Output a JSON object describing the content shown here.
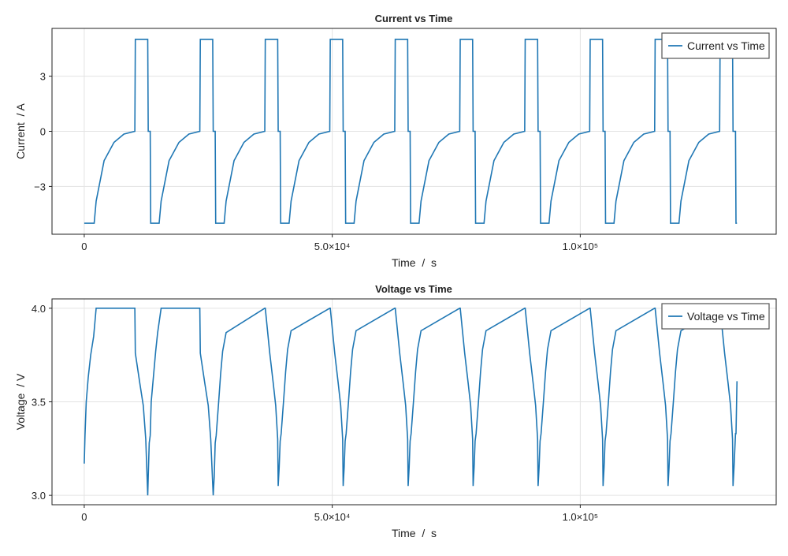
{
  "chart_data": [
    {
      "type": "line",
      "title": "Current vs Time",
      "xlabel": "Time  /  s",
      "ylabel": "Current  / A",
      "xlim": [
        -6500,
        139500
      ],
      "ylim": [
        -5.6,
        5.6
      ],
      "xticks": [
        0,
        50000,
        100000
      ],
      "xtick_labels": [
        "0",
        "5.0×10⁴",
        "1.0×10⁵"
      ],
      "yticks": [
        -3,
        0,
        3
      ],
      "ytick_labels": [
        "−3",
        "0",
        "3"
      ],
      "grid": true,
      "legend": "top-right",
      "color": "#1f77b4",
      "series": [
        {
          "name": "Current vs Time",
          "x": [
            0,
            2000,
            2400,
            4000,
            6000,
            8000,
            10200,
            10300,
            12800,
            12900,
            13300,
            13400,
            15100,
            15500,
            17100,
            19100,
            21100,
            23300,
            23400,
            25900,
            26000,
            26400,
            26500,
            28200,
            28600,
            30200,
            32200,
            34200,
            36400,
            36500,
            39000,
            39100,
            39500,
            39600,
            41300,
            41700,
            43300,
            45300,
            47300,
            49500,
            49600,
            52100,
            52200,
            52600,
            52700,
            54400,
            54800,
            56400,
            58400,
            60400,
            62600,
            62700,
            65200,
            65300,
            65700,
            65800,
            67500,
            67900,
            69500,
            71500,
            73500,
            75700,
            75800,
            78300,
            78400,
            78800,
            78900,
            80600,
            81000,
            82600,
            84600,
            86600,
            88800,
            88900,
            91400,
            91500,
            91900,
            92000,
            93700,
            94100,
            95700,
            97700,
            99700,
            101900,
            102000,
            104500,
            104600,
            105000,
            105100,
            106800,
            107200,
            108800,
            110800,
            112800,
            115000,
            115100,
            117600,
            117700,
            118100,
            118200,
            119900,
            120300,
            121900,
            123900,
            125900,
            128100,
            128200,
            130700,
            130800,
            131300,
            131400,
            131600
          ],
          "values": [
            -5,
            -5,
            -3.8,
            -1.6,
            -0.6,
            -0.15,
            0,
            5,
            5,
            0,
            0,
            -5,
            -5,
            -3.8,
            -1.6,
            -0.6,
            -0.15,
            0,
            5,
            5,
            0,
            0,
            -5,
            -5,
            -3.8,
            -1.6,
            -0.6,
            -0.15,
            0,
            5,
            5,
            0,
            0,
            -5,
            -5,
            -3.8,
            -1.6,
            -0.6,
            -0.15,
            0,
            5,
            5,
            0,
            0,
            -5,
            -5,
            -3.8,
            -1.6,
            -0.6,
            -0.15,
            0,
            5,
            5,
            0,
            0,
            -5,
            -5,
            -3.8,
            -1.6,
            -0.6,
            -0.15,
            0,
            5,
            5,
            0,
            0,
            -5,
            -5,
            -3.8,
            -1.6,
            -0.6,
            -0.15,
            0,
            5,
            5,
            0,
            0,
            -5,
            -5,
            -3.8,
            -1.6,
            -0.6,
            -0.15,
            0,
            5,
            5,
            0,
            0,
            -5,
            -5,
            -3.8,
            -1.6,
            -0.6,
            -0.15,
            0,
            5,
            5,
            0,
            0,
            -5,
            -5,
            -3.8,
            -1.6,
            -0.6,
            -0.15,
            0,
            5,
            5,
            0,
            0,
            -5,
            -5
          ]
        }
      ]
    },
    {
      "type": "line",
      "title": "Voltage vs Time",
      "xlabel": "Time  /  s",
      "ylabel": "Voltage  / V",
      "xlim": [
        -6500,
        139500
      ],
      "ylim": [
        2.95,
        4.05
      ],
      "xticks": [
        0,
        50000,
        100000
      ],
      "xtick_labels": [
        "0",
        "5.0×10⁴",
        "1.0×10⁵"
      ],
      "yticks": [
        3.0,
        3.5,
        4.0
      ],
      "ytick_labels": [
        "3.0",
        "3.5",
        "4.0"
      ],
      "grid": true,
      "legend": "top-right",
      "color": "#1f77b4",
      "series": [
        {
          "name": "Voltage vs Time",
          "x": [
            0,
            150,
            400,
            800,
            1300,
            1900,
            2400,
            10200,
            10300,
            11200,
            11900,
            12400,
            12800,
            12900,
            13100,
            13300,
            13500,
            14000,
            14400,
            14800,
            15500,
            23300,
            23400,
            24300,
            25000,
            25500,
            26000,
            26200,
            26400,
            26600,
            27100,
            27500,
            27900,
            28600,
            36400,
            36500,
            37400,
            38100,
            38600,
            39000,
            39100,
            39300,
            39500,
            39700,
            40200,
            40600,
            41000,
            41700,
            49500,
            49600,
            50500,
            51200,
            51700,
            52100,
            52200,
            52400,
            52600,
            52800,
            53300,
            53700,
            54100,
            54800,
            62600,
            62700,
            63600,
            64300,
            64800,
            65200,
            65300,
            65500,
            65700,
            65900,
            66400,
            66800,
            67200,
            67900,
            75700,
            75800,
            76700,
            77400,
            77900,
            78300,
            78400,
            78600,
            78800,
            79000,
            79500,
            79900,
            80300,
            81000,
            88800,
            88900,
            89800,
            90500,
            91000,
            91400,
            91500,
            91700,
            91900,
            92100,
            92600,
            93000,
            93400,
            94100,
            101900,
            102000,
            102900,
            103600,
            104100,
            104500,
            104600,
            104800,
            105000,
            105200,
            105700,
            106100,
            106500,
            107200,
            115000,
            115100,
            116000,
            116700,
            117200,
            117600,
            117700,
            117900,
            118100,
            118300,
            118800,
            119200,
            119600,
            120300,
            128100,
            128200,
            129100,
            129800,
            130300,
            130700,
            130800,
            131000,
            131300,
            131400,
            131600
          ],
          "values": [
            3.17,
            3.32,
            3.5,
            3.63,
            3.75,
            3.85,
            4.0,
            4.0,
            3.76,
            3.6,
            3.48,
            3.3,
            3.0,
            3.1,
            3.28,
            3.32,
            3.5,
            3.65,
            3.77,
            3.87,
            4.0,
            4.0,
            3.76,
            3.6,
            3.48,
            3.3,
            3.0,
            3.1,
            3.28,
            3.32,
            3.5,
            3.65,
            3.77,
            3.87,
            4.0,
            4.0,
            3.76,
            3.6,
            3.48,
            3.3,
            3.05,
            3.15,
            3.29,
            3.33,
            3.51,
            3.66,
            3.78,
            3.88,
            4.0,
            4.0,
            3.76,
            3.6,
            3.48,
            3.3,
            3.05,
            3.15,
            3.29,
            3.33,
            3.51,
            3.66,
            3.78,
            3.88,
            4.0,
            4.0,
            3.76,
            3.6,
            3.48,
            3.3,
            3.05,
            3.15,
            3.29,
            3.33,
            3.51,
            3.66,
            3.78,
            3.88,
            4.0,
            4.0,
            3.76,
            3.6,
            3.48,
            3.3,
            3.05,
            3.15,
            3.29,
            3.33,
            3.51,
            3.66,
            3.78,
            3.88,
            4.0,
            4.0,
            3.76,
            3.6,
            3.48,
            3.3,
            3.05,
            3.15,
            3.29,
            3.33,
            3.51,
            3.66,
            3.78,
            3.88,
            4.0,
            4.0,
            3.76,
            3.6,
            3.48,
            3.3,
            3.05,
            3.15,
            3.29,
            3.33,
            3.51,
            3.66,
            3.78,
            3.88,
            4.0,
            4.0,
            3.76,
            3.6,
            3.48,
            3.3,
            3.05,
            3.15,
            3.29,
            3.33,
            3.51,
            3.66,
            3.78,
            3.88,
            4.0,
            4.0,
            3.76,
            3.6,
            3.48,
            3.3,
            3.05,
            3.15,
            3.33,
            3.33,
            3.61
          ]
        }
      ]
    }
  ]
}
